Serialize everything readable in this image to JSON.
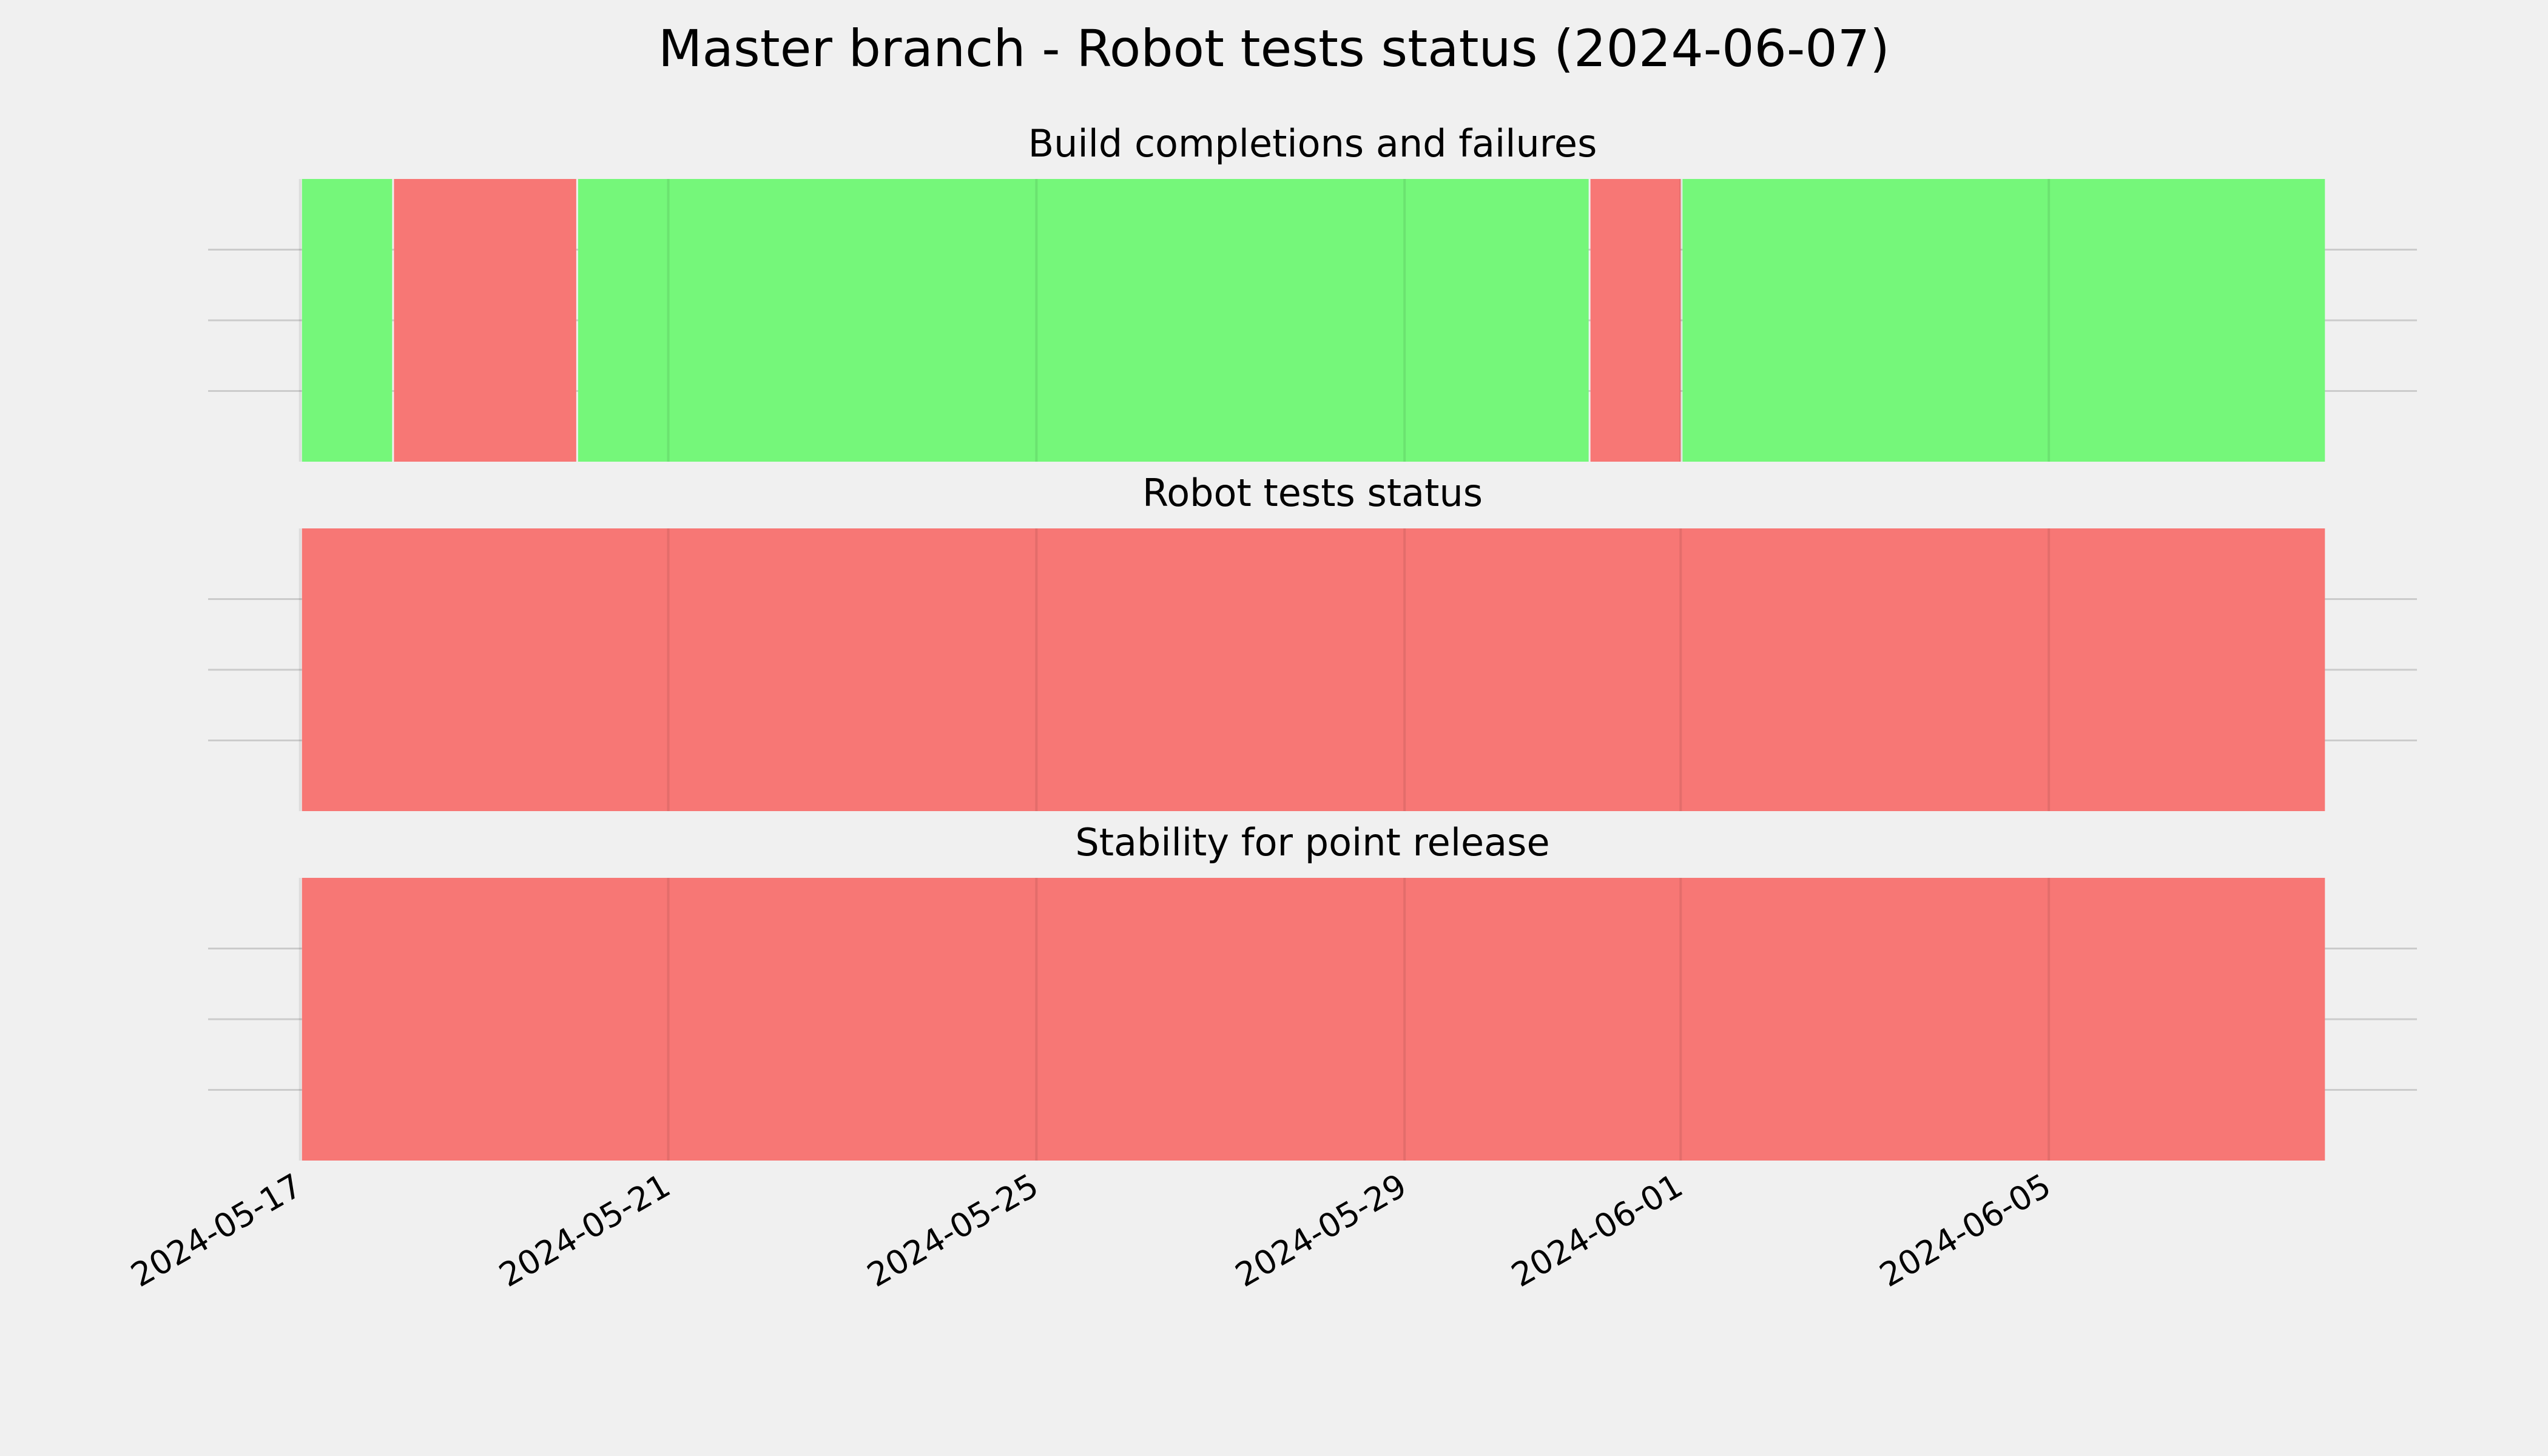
{
  "chart_data": [
    {
      "type": "timeline",
      "title": "Build completions and failures",
      "spans": [
        {
          "start": "2024-05-17",
          "end": "2024-05-18",
          "color": "#75f77a"
        },
        {
          "start": "2024-05-18",
          "end": "2024-05-20",
          "color": "#f77775"
        },
        {
          "start": "2024-05-20",
          "end": "2024-05-31",
          "color": "#75f77a"
        },
        {
          "start": "2024-05-31",
          "end": "2024-06-01",
          "color": "#f77775"
        },
        {
          "start": "2024-06-01",
          "end": "2024-06-08",
          "color": "#75f77a"
        }
      ],
      "xlim": [
        "2024-05-16",
        "2024-06-09"
      ],
      "xticks": [
        "2024-05-17",
        "2024-05-21",
        "2024-05-25",
        "2024-05-29",
        "2024-06-01",
        "2024-06-05"
      ],
      "grid": true
    },
    {
      "type": "timeline",
      "title": "Robot tests status",
      "spans": [
        {
          "start": "2024-05-17",
          "end": "2024-06-08",
          "color": "#f77775"
        }
      ],
      "xlim": [
        "2024-05-16",
        "2024-06-09"
      ],
      "xticks": [
        "2024-05-17",
        "2024-05-21",
        "2024-05-25",
        "2024-05-29",
        "2024-06-01",
        "2024-06-05"
      ],
      "grid": true
    },
    {
      "type": "timeline",
      "title": "Stability for point release",
      "spans": [
        {
          "start": "2024-05-17",
          "end": "2024-06-08",
          "color": "#f77775"
        }
      ],
      "xlim": [
        "2024-05-16",
        "2024-06-09"
      ],
      "xticks": [
        "2024-05-17",
        "2024-05-21",
        "2024-05-25",
        "2024-05-29",
        "2024-06-01",
        "2024-06-05"
      ],
      "grid": true
    }
  ],
  "title": "Master branch - Robot tests status (2024-06-07)"
}
